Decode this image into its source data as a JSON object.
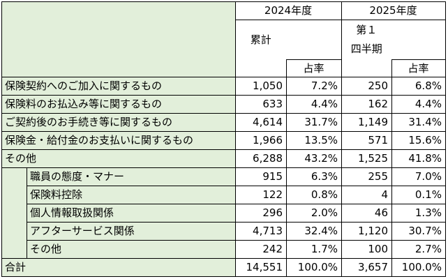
{
  "table": {
    "header": {
      "fiscal_years": [
        "2024年度",
        "2025年度"
      ],
      "cumulative_label": "累計",
      "quarter_label": [
        "第１",
        "四半期"
      ],
      "share_label_2024": "占率",
      "share_label_2025": "占率"
    },
    "categories": [
      {
        "label": "保険契約へのご加入に関するもの",
        "fy2024_cumulative": "1,050",
        "fy2024_share": "7.2%",
        "fy2025_q1": "250",
        "fy2025_share": "6.8%"
      },
      {
        "label": "保険料のお払込み等に関するもの",
        "fy2024_cumulative": "633",
        "fy2024_share": "4.4%",
        "fy2025_q1": "162",
        "fy2025_share": "4.4%"
      },
      {
        "label": "ご契約後のお手続き等に関するもの",
        "fy2024_cumulative": "4,614",
        "fy2024_share": "31.7%",
        "fy2025_q1": "1,149",
        "fy2025_share": "31.4%"
      },
      {
        "label": "保険金・給付金のお支払いに関するもの",
        "fy2024_cumulative": "1,966",
        "fy2024_share": "13.5%",
        "fy2025_q1": "571",
        "fy2025_share": "15.6%"
      },
      {
        "label": "その他",
        "fy2024_cumulative": "6,288",
        "fy2024_share": "43.2%",
        "fy2025_q1": "1,525",
        "fy2025_share": "41.8%",
        "breakdown": [
          {
            "label": "職員の態度・マナー",
            "fy2024_cumulative": "915",
            "fy2024_share": "6.3%",
            "fy2025_q1": "255",
            "fy2025_share": "7.0%"
          },
          {
            "label": "保険料控除",
            "fy2024_cumulative": "122",
            "fy2024_share": "0.8%",
            "fy2025_q1": "4",
            "fy2025_share": "0.1%"
          },
          {
            "label": "個人情報取扱関係",
            "fy2024_cumulative": "296",
            "fy2024_share": "2.0%",
            "fy2025_q1": "46",
            "fy2025_share": "1.3%"
          },
          {
            "label": "アフターサービス関係",
            "fy2024_cumulative": "4,713",
            "fy2024_share": "32.4%",
            "fy2025_q1": "1,120",
            "fy2025_share": "30.7%"
          },
          {
            "label": "その他",
            "fy2024_cumulative": "242",
            "fy2024_share": "1.7%",
            "fy2025_q1": "100",
            "fy2025_share": "2.7%"
          }
        ]
      }
    ],
    "total": {
      "label": "合計",
      "fy2024_cumulative": "14,551",
      "fy2024_share": "100.0%",
      "fy2025_q1": "3,657",
      "fy2025_share": "100.0%"
    }
  },
  "colors": {
    "label_bg": "#E2EFDA",
    "grid_line": "#000000",
    "text": "#000000"
  }
}
